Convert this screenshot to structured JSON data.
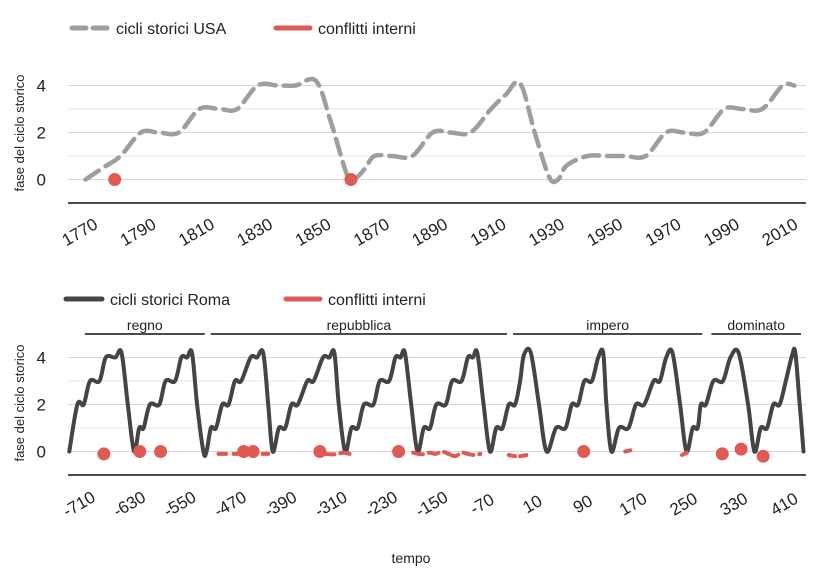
{
  "xlabel": "tempo",
  "chart_data": [
    {
      "type": "line",
      "ylabel": "fase del ciclo storico",
      "ylim": [
        -1,
        5
      ],
      "xlim": [
        1765,
        2018
      ],
      "yticks": [
        0,
        2,
        4
      ],
      "xticks": [
        1770,
        1790,
        1810,
        1830,
        1850,
        1870,
        1890,
        1910,
        1930,
        1950,
        1970,
        1990,
        2010
      ],
      "grid": true,
      "legend_position": "top-left",
      "series": [
        {
          "name": "cicli storici USA",
          "style": "dashed",
          "color": "#9e9e9e",
          "x": [
            1771,
            1777,
            1783,
            1790,
            1796,
            1803,
            1810,
            1817,
            1823,
            1830,
            1837,
            1843,
            1850,
            1855,
            1861,
            1864,
            1867,
            1870,
            1876,
            1883,
            1890,
            1896,
            1903,
            1910,
            1915,
            1920,
            1925,
            1930,
            1933,
            1936,
            1943,
            1950,
            1956,
            1963,
            1970,
            1976,
            1983,
            1990,
            1996,
            2003,
            2010,
            2014
          ],
          "y": [
            0.0,
            0.5,
            1.0,
            2.0,
            2.0,
            2.0,
            3.0,
            3.0,
            3.0,
            4.0,
            4.0,
            4.0,
            4.2,
            2.5,
            0.1,
            0.1,
            0.5,
            1.0,
            1.0,
            1.0,
            2.0,
            2.0,
            2.0,
            3.0,
            3.6,
            4.1,
            2.0,
            0.1,
            0.0,
            0.6,
            1.0,
            1.0,
            1.0,
            1.0,
            2.0,
            2.0,
            2.0,
            3.0,
            3.0,
            3.0,
            4.0,
            4.0
          ]
        },
        {
          "name": "conflitti interni",
          "style": "points",
          "color": "#e05a55",
          "x": [
            1781,
            1862
          ],
          "y": [
            0.0,
            0.0
          ]
        }
      ]
    },
    {
      "type": "line",
      "ylabel": "fase del ciclo storico",
      "ylim": [
        -1,
        5
      ],
      "xlim": [
        -732,
        440
      ],
      "yticks": [
        0,
        2,
        4
      ],
      "xticks": [
        -710,
        -630,
        -550,
        -470,
        -390,
        -310,
        -230,
        -150,
        -70,
        10,
        90,
        170,
        250,
        330,
        410
      ],
      "grid": true,
      "legend_position": "top-left",
      "eras": [
        {
          "label": "regno",
          "from": -710,
          "to": -510
        },
        {
          "label": "repubblica",
          "from": -510,
          "to": -30
        },
        {
          "label": "impero",
          "from": -30,
          "to": 280
        },
        {
          "label": "dominato",
          "from": 285,
          "to": 440
        }
      ],
      "series": [
        {
          "name": "cicli storici Roma",
          "style": "solid",
          "color": "#444444",
          "x": [
            -730,
            -717,
            -707,
            -697,
            -682,
            -672,
            -657,
            -647,
            -637,
            -627,
            -619,
            -612,
            -602,
            -587,
            -577,
            -562,
            -552,
            -543,
            -535,
            -527,
            -517,
            -512,
            -505,
            -497,
            -487,
            -477,
            -467,
            -457,
            -442,
            -432,
            -422,
            -414,
            -407,
            -397,
            -387,
            -377,
            -367,
            -352,
            -342,
            -327,
            -317,
            -309,
            -302,
            -292,
            -282,
            -272,
            -262,
            -247,
            -237,
            -222,
            -212,
            -204,
            -197,
            -187,
            -177,
            -167,
            -157,
            -147,
            -132,
            -122,
            -107,
            -97,
            -89,
            -82,
            -72,
            -62,
            -52,
            -42,
            -32,
            -22,
            -14,
            -8,
            3,
            16,
            28,
            43,
            58,
            68,
            78,
            88,
            100,
            110,
            118,
            123,
            131,
            143,
            158,
            170,
            183,
            198,
            208,
            218,
            228,
            240,
            250,
            260,
            268,
            273,
            281,
            293,
            308,
            320,
            333,
            348,
            358,
            368,
            378,
            388,
            398,
            408,
            418,
            423,
            430,
            436
          ],
          "y": [
            0.0,
            2.0,
            2.0,
            3.0,
            3.0,
            4.0,
            4.0,
            4.2,
            2.0,
            0.0,
            1.0,
            1.0,
            2.0,
            2.0,
            3.0,
            3.0,
            4.0,
            4.0,
            4.2,
            2.0,
            0.0,
            0.0,
            1.0,
            1.0,
            2.0,
            2.0,
            3.0,
            3.0,
            4.0,
            4.0,
            4.2,
            2.0,
            0.0,
            1.0,
            1.0,
            2.0,
            2.0,
            3.0,
            3.0,
            4.0,
            4.0,
            4.2,
            2.0,
            0.0,
            1.0,
            1.0,
            2.0,
            2.0,
            3.0,
            3.0,
            4.0,
            4.0,
            4.2,
            2.0,
            0.0,
            1.0,
            1.0,
            2.0,
            2.0,
            3.0,
            3.0,
            4.0,
            4.0,
            4.2,
            2.0,
            0.0,
            1.0,
            1.0,
            2.0,
            2.0,
            3.0,
            4.1,
            4.2,
            2.0,
            0.0,
            1.0,
            1.0,
            2.0,
            2.0,
            3.0,
            3.0,
            4.0,
            4.2,
            2.0,
            0.0,
            1.0,
            1.0,
            2.0,
            2.0,
            3.0,
            3.0,
            4.0,
            4.2,
            2.0,
            0.0,
            1.0,
            1.0,
            2.0,
            2.0,
            3.0,
            3.0,
            4.0,
            4.2,
            2.0,
            0.0,
            1.0,
            1.0,
            2.0,
            2.0,
            3.0,
            4.1,
            4.2,
            2.0,
            0.0
          ]
        },
        {
          "name": "conflitti interni",
          "style": "dashed",
          "color": "#e05a55",
          "segments": [
            {
              "x": [
                -493,
                -481
              ],
              "y": [
                -0.1,
                -0.1
              ]
            },
            {
              "x": [
                -469,
                -459
              ],
              "y": [
                -0.1,
                -0.1
              ]
            },
            {
              "x": [
                -423,
                -414
              ],
              "y": [
                -0.1,
                -0.1
              ]
            },
            {
              "x": [
                -325,
                -309,
                -295,
                -285
              ],
              "y": [
                -0.1,
                -0.12,
                -0.05,
                -0.1
              ]
            },
            {
              "x": [
                -184,
                -170,
                -158,
                -148,
                -138,
                -128
              ],
              "y": [
                -0.05,
                -0.12,
                -0.05,
                -0.1,
                0.0,
                -0.1
              ]
            },
            {
              "x": [
                -127,
                -117,
                -107,
                -97,
                -87,
                -77
              ],
              "y": [
                -0.1,
                -0.2,
                -0.05,
                -0.1,
                -0.15,
                -0.1
              ]
            },
            {
              "x": [
                -32,
                -22
              ],
              "y": [
                -0.15,
                -0.2
              ]
            },
            {
              "x": [
                -14,
                -4
              ],
              "y": [
                -0.2,
                -0.15
              ]
            },
            {
              "x": [
                153,
                161
              ],
              "y": [
                0.0,
                0.05
              ]
            },
            {
              "x": [
                243,
                251
              ],
              "y": [
                -0.15,
                -0.05
              ]
            }
          ],
          "points": [
            {
              "x": -675,
              "y": -0.1
            },
            {
              "x": -618,
              "y": 0.0
            },
            {
              "x": -585,
              "y": 0.0
            },
            {
              "x": -453,
              "y": 0.0
            },
            {
              "x": -438,
              "y": 0.0
            },
            {
              "x": -332,
              "y": 0.0
            },
            {
              "x": -207,
              "y": 0.0
            },
            {
              "x": 87,
              "y": 0.0
            },
            {
              "x": 307,
              "y": -0.1
            },
            {
              "x": 337,
              "y": 0.1
            },
            {
              "x": 372,
              "y": -0.2
            }
          ]
        }
      ]
    }
  ]
}
